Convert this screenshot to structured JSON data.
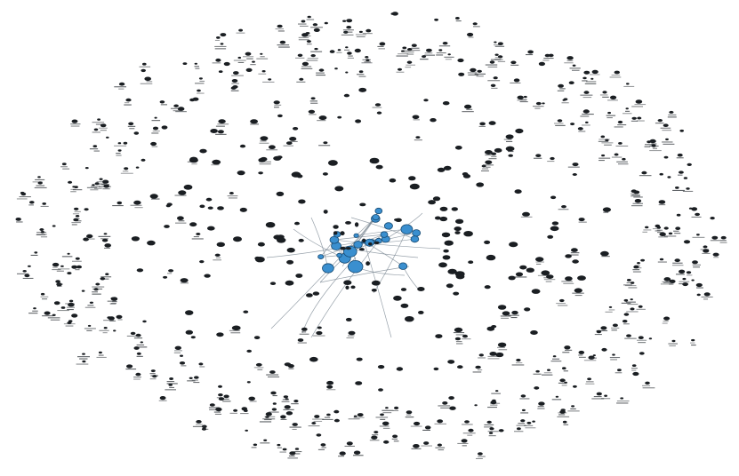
{
  "colors": {
    "background": "#ffffff",
    "peripheral_node": "#1a1e22",
    "hub_node": "#3a8fcf",
    "hub_outline": "#174a72",
    "edge": "#7d8a95",
    "label": "#2e3338"
  },
  "graph": {
    "layout": "radial",
    "rings": 3,
    "hub_cluster_count": 26,
    "labels_legible": false
  }
}
